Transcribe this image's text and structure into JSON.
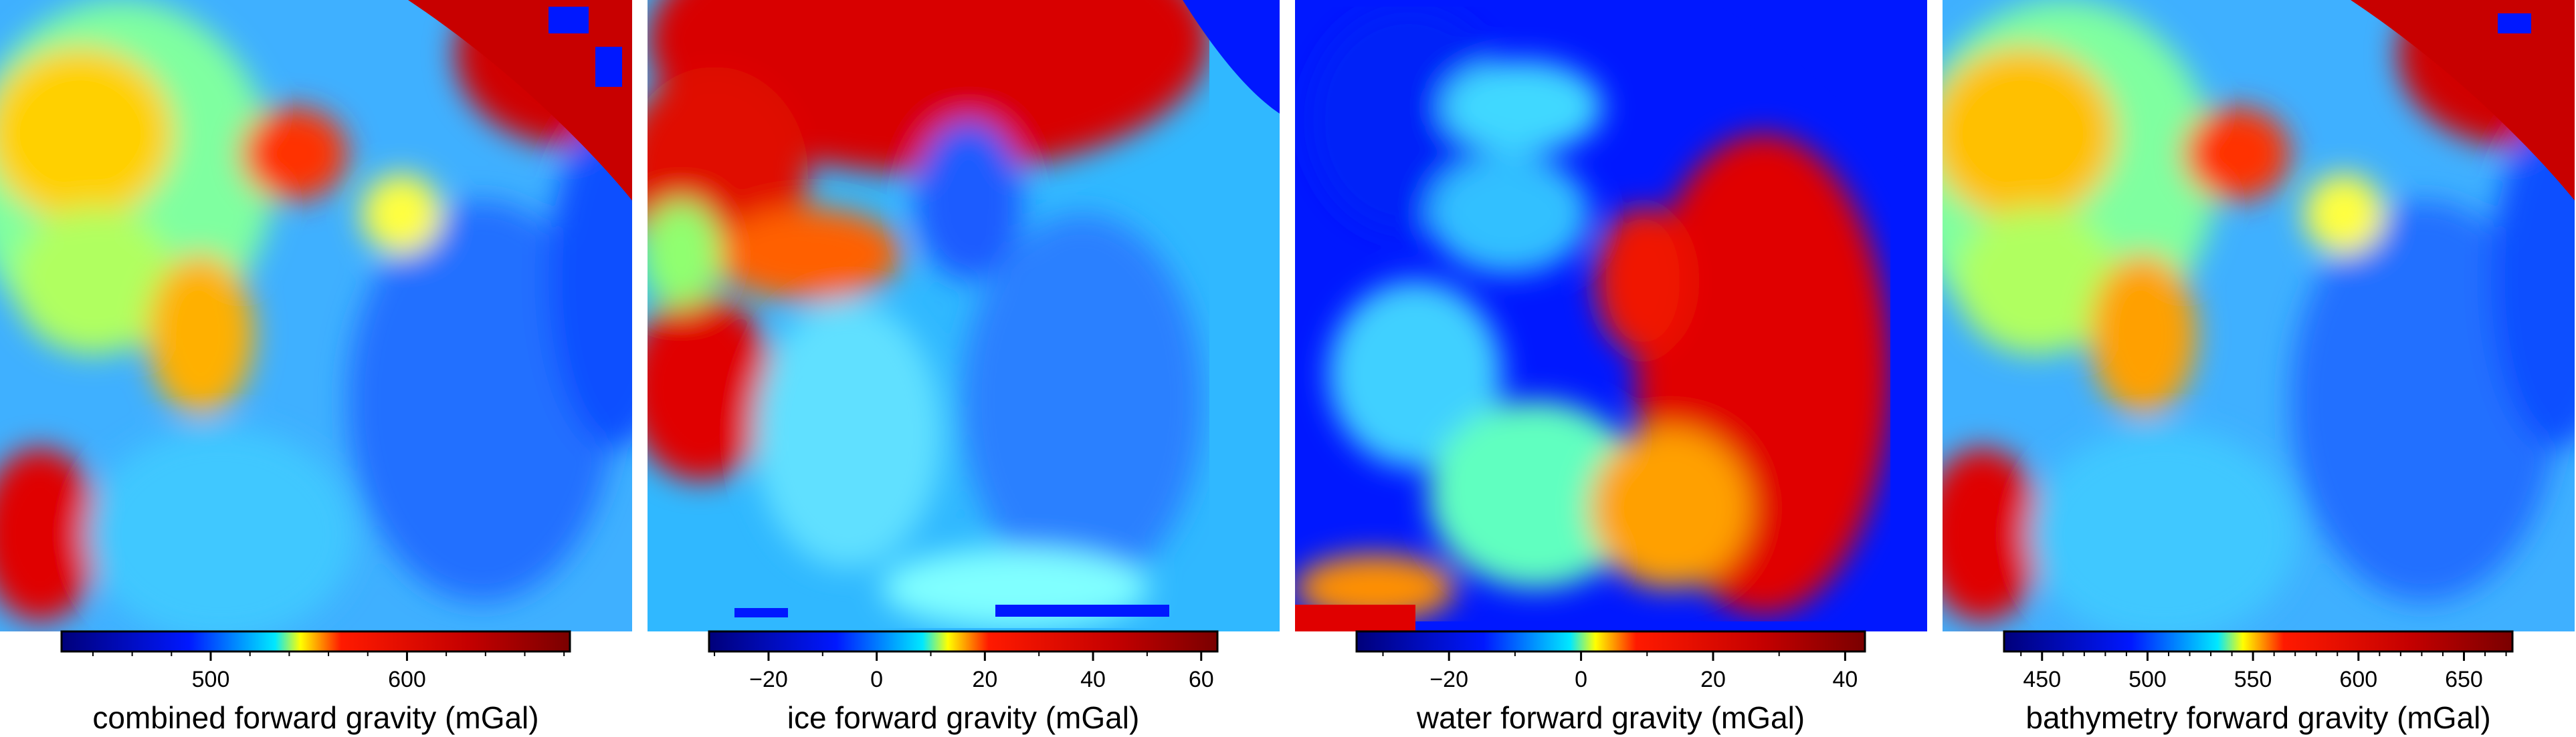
{
  "chart_data": [
    {
      "type": "heatmap",
      "colorscale": "jet",
      "colorbar": {
        "label": "combined forward gravity (mGal)",
        "range": [
          424,
          683
        ],
        "ticks": [
          500,
          600
        ],
        "minor_step": 20
      }
    },
    {
      "type": "heatmap",
      "colorscale": "jet",
      "colorbar": {
        "label": "ice forward gravity (mGal)",
        "range": [
          -31,
          63
        ],
        "ticks": [
          -20,
          0,
          20,
          40,
          60
        ],
        "minor_step": 10
      }
    },
    {
      "type": "heatmap",
      "colorscale": "jet",
      "colorbar": {
        "label": "water forward gravity (mGal)",
        "range": [
          -34,
          43
        ],
        "ticks": [
          -20,
          0,
          20,
          40
        ],
        "minor_step": 10
      }
    },
    {
      "type": "heatmap",
      "colorscale": "jet",
      "colorbar": {
        "label": "bathymetry forward gravity (mGal)",
        "range": [
          432,
          673
        ],
        "ticks": [
          450,
          500,
          550,
          600,
          650
        ],
        "minor_step": 10
      }
    }
  ]
}
